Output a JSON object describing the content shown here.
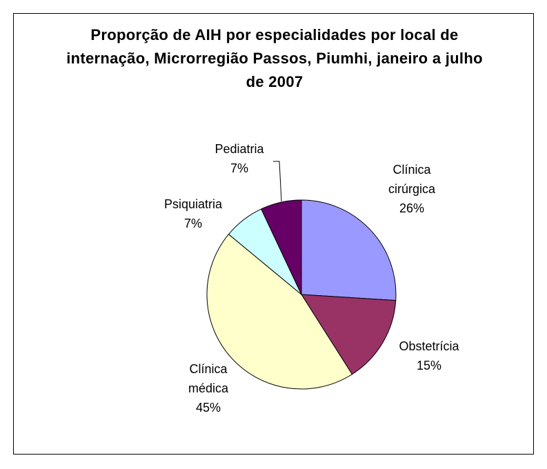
{
  "chart_data": {
    "type": "pie",
    "title": "Proporção de AIH por especialidades por local de internação, Microrregião Passos, Piumhi, janeiro a julho de 2007",
    "categories": [
      "Clínica cirúrgica",
      "Obstetrícia",
      "Clínica médica",
      "Psiquiatria",
      "Pediatria"
    ],
    "values": [
      26,
      15,
      45,
      7,
      7
    ],
    "value_labels": [
      "26%",
      "15%",
      "45%",
      "7%",
      "7%"
    ],
    "colors": [
      "#9999ff",
      "#993366",
      "#ffffcc",
      "#ccffff",
      "#660066"
    ]
  }
}
